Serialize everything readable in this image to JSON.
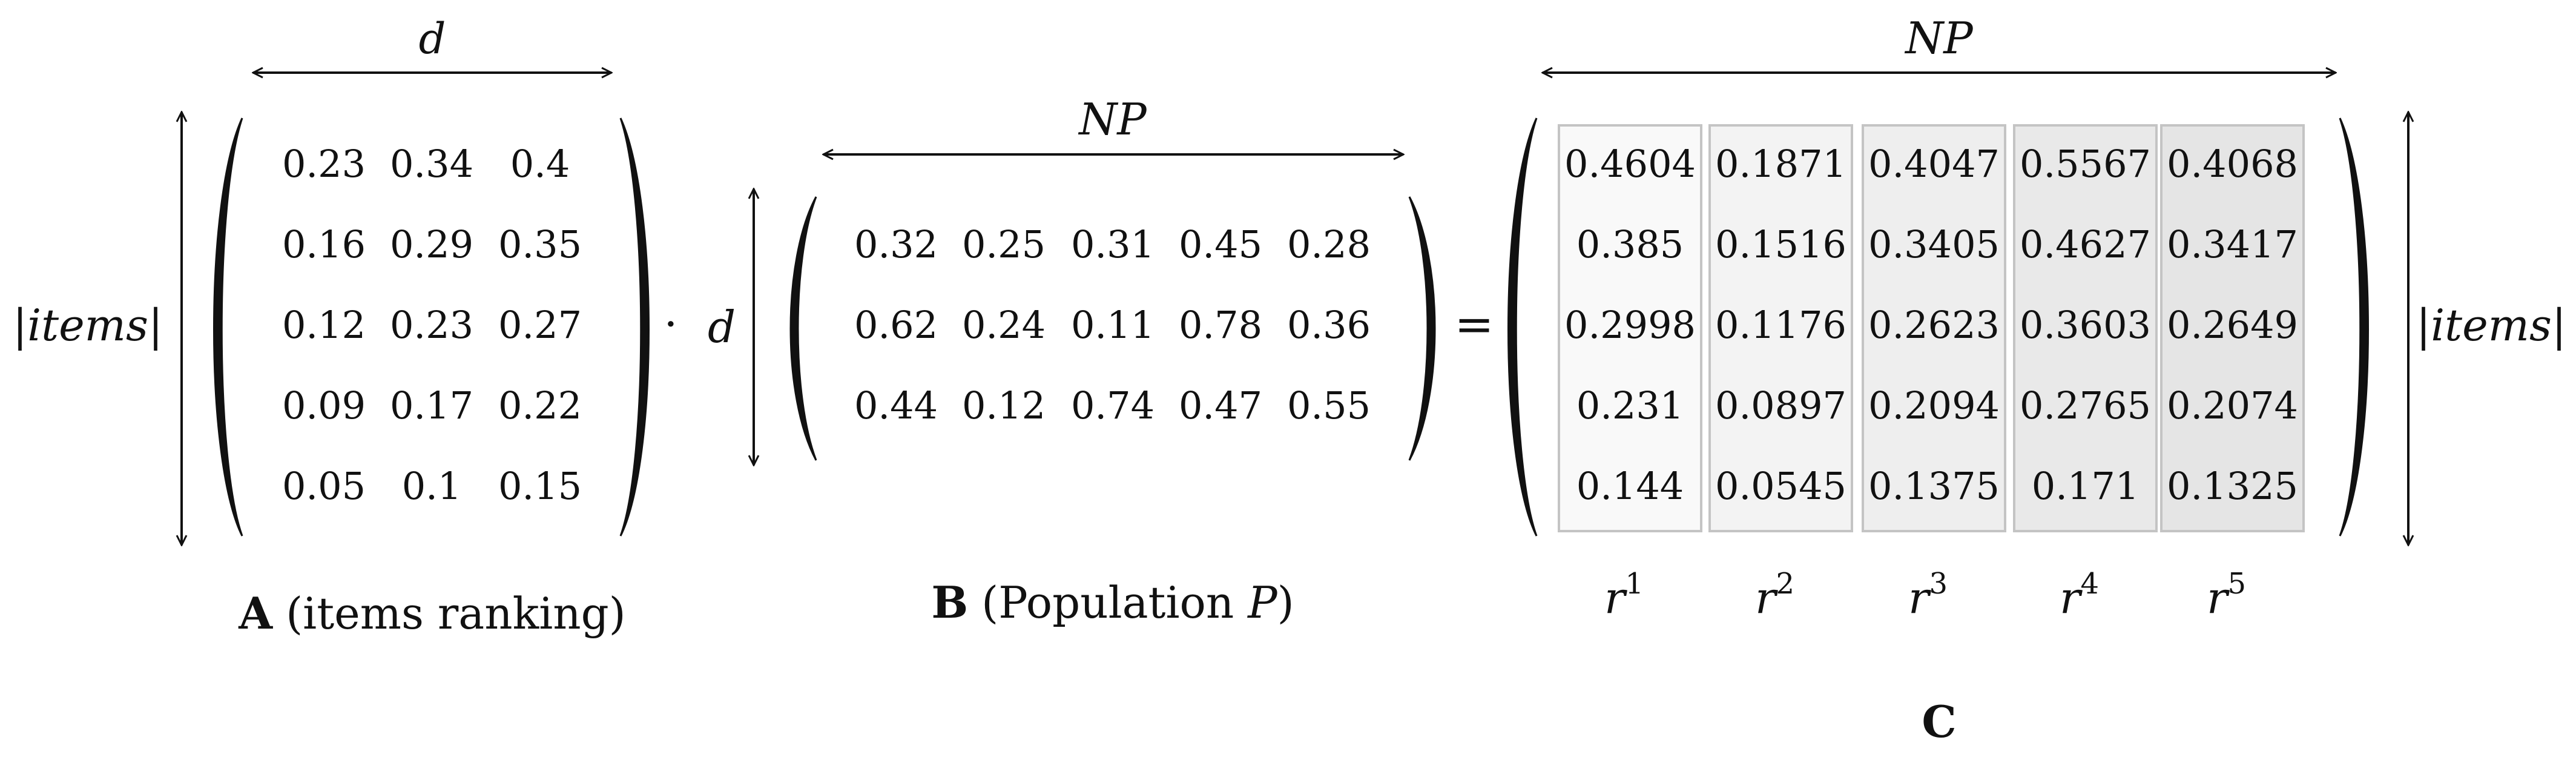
{
  "matrix_a": {
    "rows": [
      [
        "0.23",
        "0.34",
        "0.4"
      ],
      [
        "0.16",
        "0.29",
        "0.35"
      ],
      [
        "0.12",
        "0.23",
        "0.27"
      ],
      [
        "0.09",
        "0.17",
        "0.22"
      ],
      [
        "0.05",
        "0.1",
        "0.15"
      ]
    ],
    "top_dim": "d",
    "side_dim": "|items|",
    "caption_bold": "A",
    "caption_text": "(items ranking)"
  },
  "dot_operator": "·",
  "matrix_b": {
    "rows": [
      [
        "0.32",
        "0.25",
        "0.31",
        "0.45",
        "0.28"
      ],
      [
        "0.62",
        "0.24",
        "0.11",
        "0.78",
        "0.36"
      ],
      [
        "0.44",
        "0.12",
        "0.74",
        "0.47",
        "0.55"
      ]
    ],
    "top_dim": "NP",
    "side_dim": "d",
    "caption_bold": "B",
    "caption_text": "(Population ",
    "caption_var": "P",
    "caption_close": ")"
  },
  "equals_operator": "=",
  "matrix_c": {
    "rows": [
      [
        "0.4604",
        "0.1871",
        "0.4047",
        "0.5567",
        "0.4068"
      ],
      [
        "0.385",
        "0.1516",
        "0.3405",
        "0.4627",
        "0.3417"
      ],
      [
        "0.2998",
        "0.1176",
        "0.2623",
        "0.3603",
        "0.2649"
      ],
      [
        "0.231",
        "0.0897",
        "0.2094",
        "0.2765",
        "0.2074"
      ],
      [
        "0.144",
        "0.0545",
        "0.1375",
        "0.171",
        "0.1325"
      ]
    ],
    "column_labels": [
      {
        "base": "r",
        "sup": "1"
      },
      {
        "base": "r",
        "sup": "2"
      },
      {
        "base": "r",
        "sup": "3"
      },
      {
        "base": "r",
        "sup": "4"
      },
      {
        "base": "r",
        "sup": "5"
      }
    ],
    "column_shades": [
      "#f9f9f9",
      "#f3f3f3",
      "#eeeeee",
      "#e9e9e9",
      "#e5e5e5"
    ],
    "top_dim": "NP",
    "side_dim": "|items|",
    "caption_bold": "C"
  }
}
